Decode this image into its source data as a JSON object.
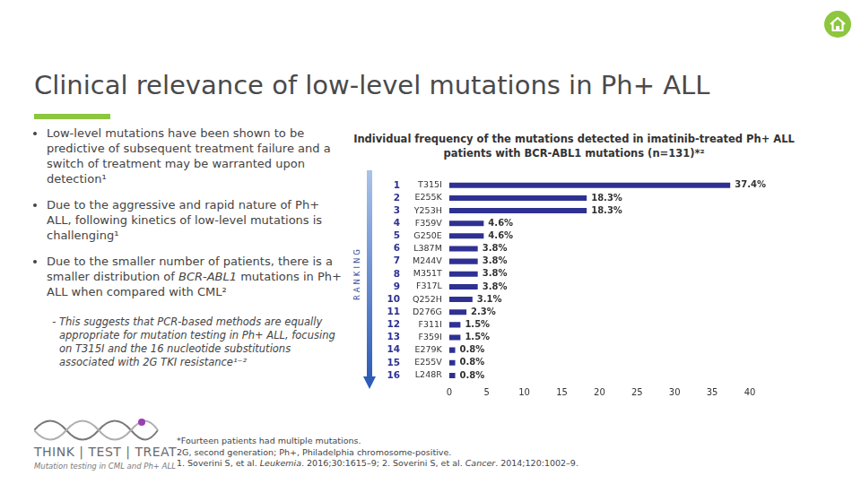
{
  "slide": {
    "title": "Clinical relevance of low-level mutations in Ph+ ALL",
    "bullets": [
      {
        "segments": [
          {
            "text": "Low-level mutations have been shown to be predictive of subsequent treatment failure and a switch of treatment may be warranted upon detection¹"
          }
        ]
      },
      {
        "segments": [
          {
            "text": "Due to the aggressive and rapid nature of Ph+ ALL, following kinetics of low-level mutations is challenging¹"
          }
        ]
      },
      {
        "segments": [
          {
            "text": "Due to the smaller number of patients, there is a smaller distribution of "
          },
          {
            "text": "BCR-ABL1",
            "italic": true
          },
          {
            "text": " mutations in Ph+ ALL when compared with CML²"
          }
        ],
        "sub": [
          {
            "segments": [
              {
                "text": "This suggests that PCR-based methods are equally appropriate for mutation testing in Ph+ ALL, focusing on T315I and the 16 nucleotide substitutions associated with 2G TKI resistance¹⁻²"
              }
            ]
          }
        ]
      }
    ],
    "footnotes": [
      [
        {
          "text": "*Fourteen patients had multiple mutations."
        }
      ],
      [
        {
          "text": "2G, second generation; Ph+, Philadelphia chromosome-positive."
        }
      ],
      [
        {
          "text": "1. Soverini S, et al. "
        },
        {
          "text": "Leukemia",
          "italic": true
        },
        {
          "text": ". 2016;30:1615–9; 2. Soverini S, et al. "
        },
        {
          "text": "Cancer",
          "italic": true
        },
        {
          "text": ". 2014;120:1002–9."
        }
      ]
    ],
    "logo": {
      "text": "THINK | TEST | TREAT",
      "tagline": "Mutation testing in CML and Ph+ ALL"
    }
  },
  "chart_data": {
    "type": "bar",
    "orientation": "horizontal",
    "title": "Individual frequency of the mutations detected in imatinib-treated Ph+ ALL patients with BCR-ABL1 mutations (n=131)*²",
    "ylabel": "RANKING",
    "ranks": [
      1,
      2,
      3,
      4,
      5,
      6,
      7,
      8,
      9,
      10,
      11,
      12,
      13,
      14,
      15,
      16
    ],
    "categories": [
      "T315I",
      "E255K",
      "Y253H",
      "F359V",
      "G250E",
      "L387M",
      "M244V",
      "M351T",
      "F317L",
      "Q252H",
      "D276G",
      "F311I",
      "F359I",
      "E279K",
      "E255V",
      "L248R"
    ],
    "values": [
      37.4,
      18.3,
      18.3,
      4.6,
      4.6,
      3.8,
      3.8,
      3.8,
      3.8,
      3.1,
      2.3,
      1.5,
      1.5,
      0.8,
      0.8,
      0.8
    ],
    "value_labels": [
      "37.4%",
      "18.3%",
      "18.3%",
      "4.6%",
      "4.6%",
      "3.8%",
      "3.8%",
      "3.8%",
      "3.8%",
      "3.1%",
      "2.3%",
      "1.5%",
      "1.5%",
      "0.8%",
      "0.8%",
      "0.8%"
    ],
    "data_labels": true,
    "color": "#2e3192",
    "xlim": [
      0,
      40
    ],
    "xticks": [
      0,
      5,
      10,
      15,
      20,
      25,
      30,
      35,
      40
    ],
    "grid": false
  }
}
